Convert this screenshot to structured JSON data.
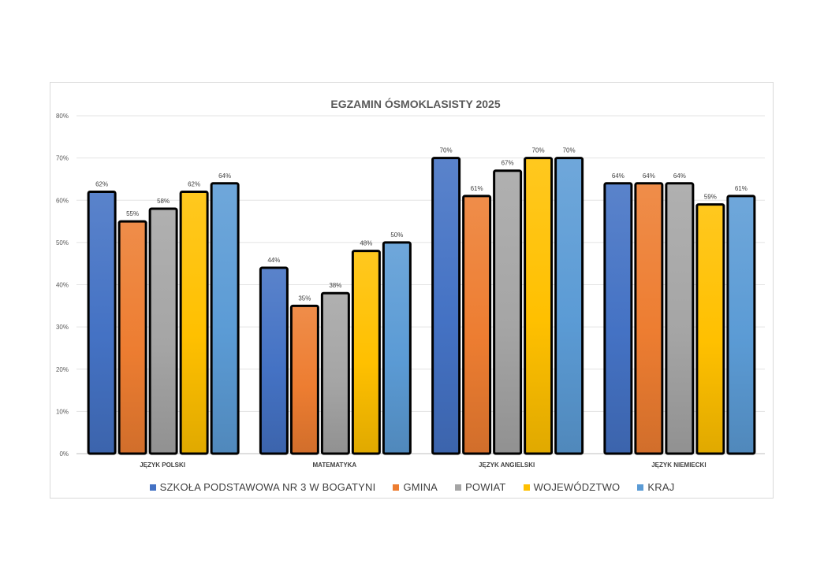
{
  "chart_data": {
    "type": "bar",
    "title": "EGZAMIN ÓSMOKLASISTY 2025",
    "categories": [
      "JĘZYK POLSKI",
      "MATEMATYKA",
      "JĘZYK ANGIELSKI",
      "JĘZYK NIEMIECKI"
    ],
    "series": [
      {
        "name": "SZKOŁA PODSTAWOWA NR 3 W BOGATYNI",
        "values": [
          62,
          44,
          70,
          64
        ],
        "color": "#4472c4"
      },
      {
        "name": "GMINA",
        "values": [
          55,
          35,
          61,
          64
        ],
        "color": "#ed7d31"
      },
      {
        "name": "POWIAT",
        "values": [
          58,
          38,
          67,
          64
        ],
        "color": "#a5a5a5"
      },
      {
        "name": "WOJEWÓDZTWO",
        "values": [
          62,
          48,
          70,
          59
        ],
        "color": "#ffc000"
      },
      {
        "name": "KRAJ",
        "values": [
          64,
          50,
          70,
          61
        ],
        "color": "#5b9bd5"
      }
    ],
    "ylim": [
      0,
      80
    ],
    "yticks": [
      "0%",
      "10%",
      "20%",
      "30%",
      "40%",
      "50%",
      "60%",
      "70%",
      "80%"
    ],
    "value_suffix": "%",
    "grid": true,
    "legend_position": "bottom"
  }
}
